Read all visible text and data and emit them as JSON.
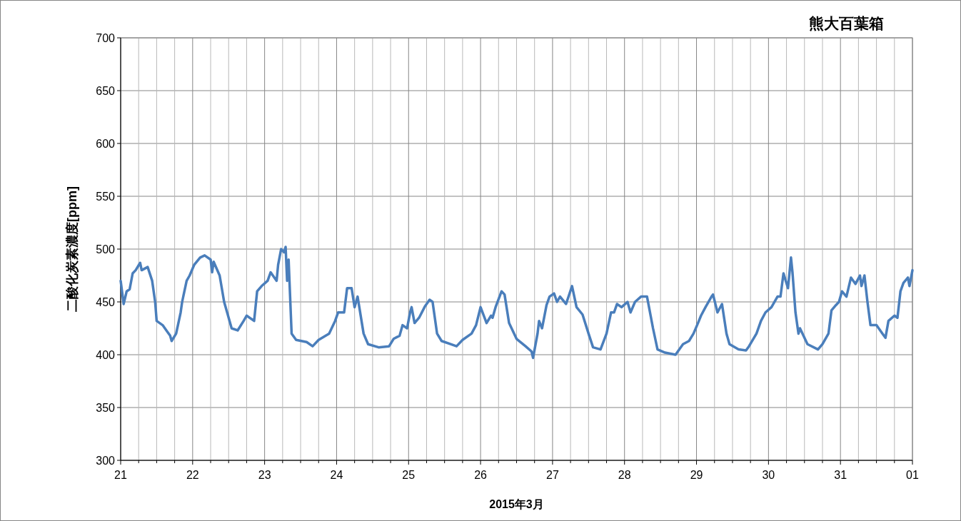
{
  "chart_data": {
    "type": "line",
    "title": "熊大百葉箱",
    "xlabel": "2015年3月",
    "ylabel": "二酸化炭素濃度[ppm]",
    "xlim": [
      "2015-03-21T00:00",
      "2015-04-01T00:00"
    ],
    "ylim": [
      300,
      700
    ],
    "yticks": [
      300,
      350,
      400,
      450,
      500,
      550,
      600,
      650,
      700
    ],
    "xticks": [
      {
        "value": "2015-03-21T00:00",
        "label": "21"
      },
      {
        "value": "2015-03-21T06:00",
        "label": null
      },
      {
        "value": "2015-03-21T12:00",
        "label": null
      },
      {
        "value": "2015-03-21T18:00",
        "label": null
      },
      {
        "value": "2015-03-22T00:00",
        "label": "22"
      },
      {
        "value": "2015-03-22T06:00",
        "label": null
      },
      {
        "value": "2015-03-22T12:00",
        "label": null
      },
      {
        "value": "2015-03-22T18:00",
        "label": null
      },
      {
        "value": "2015-03-23T00:00",
        "label": "23"
      },
      {
        "value": "2015-03-23T06:00",
        "label": null
      },
      {
        "value": "2015-03-23T12:00",
        "label": null
      },
      {
        "value": "2015-03-23T18:00",
        "label": null
      },
      {
        "value": "2015-03-24T00:00",
        "label": "24"
      },
      {
        "value": "2015-03-24T06:00",
        "label": null
      },
      {
        "value": "2015-03-24T12:00",
        "label": null
      },
      {
        "value": "2015-03-24T18:00",
        "label": null
      },
      {
        "value": "2015-03-25T00:00",
        "label": "25"
      },
      {
        "value": "2015-03-25T06:00",
        "label": null
      },
      {
        "value": "2015-03-25T12:00",
        "label": null
      },
      {
        "value": "2015-03-25T18:00",
        "label": null
      },
      {
        "value": "2015-03-26T00:00",
        "label": "26"
      },
      {
        "value": "2015-03-26T06:00",
        "label": null
      },
      {
        "value": "2015-03-26T12:00",
        "label": null
      },
      {
        "value": "2015-03-26T18:00",
        "label": null
      },
      {
        "value": "2015-03-27T00:00",
        "label": "27"
      },
      {
        "value": "2015-03-27T06:00",
        "label": null
      },
      {
        "value": "2015-03-27T12:00",
        "label": null
      },
      {
        "value": "2015-03-27T18:00",
        "label": null
      },
      {
        "value": "2015-03-28T00:00",
        "label": "28"
      },
      {
        "value": "2015-03-28T06:00",
        "label": null
      },
      {
        "value": "2015-03-28T12:00",
        "label": null
      },
      {
        "value": "2015-03-28T18:00",
        "label": null
      },
      {
        "value": "2015-03-29T00:00",
        "label": "29"
      },
      {
        "value": "2015-03-29T06:00",
        "label": null
      },
      {
        "value": "2015-03-29T12:00",
        "label": null
      },
      {
        "value": "2015-03-29T18:00",
        "label": null
      },
      {
        "value": "2015-03-30T00:00",
        "label": "30"
      },
      {
        "value": "2015-03-30T06:00",
        "label": null
      },
      {
        "value": "2015-03-30T12:00",
        "label": null
      },
      {
        "value": "2015-03-30T18:00",
        "label": null
      },
      {
        "value": "2015-03-31T00:00",
        "label": "31"
      },
      {
        "value": "2015-03-31T06:00",
        "label": null
      },
      {
        "value": "2015-03-31T12:00",
        "label": null
      },
      {
        "value": "2015-03-31T18:00",
        "label": null
      },
      {
        "value": "2015-04-01T00:00",
        "label": "01"
      }
    ],
    "grid": true,
    "series": [
      {
        "color": "#4a7ebb",
        "x": [
          "2015-03-21T00:00",
          "2015-03-21T01:00",
          "2015-03-21T02:00",
          "2015-03-21T03:00",
          "2015-03-21T04:00",
          "2015-03-21T05:00",
          "2015-03-21T06:30",
          "2015-03-21T07:00",
          "2015-03-21T09:00",
          "2015-03-21T10:30",
          "2015-03-21T11:30",
          "2015-03-21T12:00",
          "2015-03-21T14:00",
          "2015-03-21T15:30",
          "2015-03-21T16:30",
          "2015-03-21T17:00",
          "2015-03-21T18:30",
          "2015-03-21T20:00",
          "2015-03-21T20:30",
          "2015-03-21T22:00",
          "2015-03-21T23:00",
          "2015-03-22T00:30",
          "2015-03-22T02:30",
          "2015-03-22T04:00",
          "2015-03-22T06:00",
          "2015-03-22T06:30",
          "2015-03-22T07:00",
          "2015-03-22T09:00",
          "2015-03-22T10:30",
          "2015-03-22T11:30",
          "2015-03-22T13:00",
          "2015-03-22T15:00",
          "2015-03-22T17:00",
          "2015-03-22T18:00",
          "2015-03-22T20:30",
          "2015-03-22T21:30",
          "2015-03-22T23:00",
          "2015-03-23T01:00",
          "2015-03-23T02:00",
          "2015-03-23T04:00",
          "2015-03-23T04:30",
          "2015-03-23T05:30",
          "2015-03-23T06:30",
          "2015-03-23T07:00",
          "2015-03-23T07:30",
          "2015-03-23T08:00",
          "2015-03-23T09:00",
          "2015-03-23T10:30",
          "2015-03-23T14:00",
          "2015-03-23T16:00",
          "2015-03-23T18:00",
          "2015-03-23T21:30",
          "2015-03-23T23:30",
          "2015-03-24T00:30",
          "2015-03-24T02:30",
          "2015-03-24T03:30",
          "2015-03-24T05:00",
          "2015-03-24T06:00",
          "2015-03-24T07:00",
          "2015-03-24T09:00",
          "2015-03-24T10:30",
          "2015-03-24T14:00",
          "2015-03-24T17:30",
          "2015-03-24T19:00",
          "2015-03-24T21:00",
          "2015-03-24T22:00",
          "2015-03-24T23:30",
          "2015-03-25T00:30",
          "2015-03-25T01:00",
          "2015-03-25T02:00",
          "2015-03-25T03:30",
          "2015-03-25T05:30",
          "2015-03-25T07:00",
          "2015-03-25T08:00",
          "2015-03-25T09:30",
          "2015-03-25T11:00",
          "2015-03-25T14:00",
          "2015-03-25T16:00",
          "2015-03-25T18:00",
          "2015-03-25T21:00",
          "2015-03-25T22:30",
          "2015-03-26T00:00",
          "2015-03-26T02:00",
          "2015-03-26T03:30",
          "2015-03-26T04:00",
          "2015-03-26T05:00",
          "2015-03-26T07:00",
          "2015-03-26T08:00",
          "2015-03-26T09:30",
          "2015-03-26T12:00",
          "2015-03-26T15:00",
          "2015-03-26T17:00",
          "2015-03-26T17:30",
          "2015-03-26T19:00",
          "2015-03-26T19:30",
          "2015-03-26T20:30",
          "2015-03-26T22:00",
          "2015-03-26T23:00",
          "2015-03-27T00:30",
          "2015-03-27T01:30",
          "2015-03-27T02:30",
          "2015-03-27T04:30",
          "2015-03-27T06:30",
          "2015-03-27T08:00",
          "2015-03-27T10:00",
          "2015-03-27T12:00",
          "2015-03-27T13:30",
          "2015-03-27T16:00",
          "2015-03-27T18:00",
          "2015-03-27T19:30",
          "2015-03-27T20:30",
          "2015-03-27T21:30",
          "2015-03-27T23:00",
          "2015-03-28T01:00",
          "2015-03-28T02:00",
          "2015-03-28T03:30",
          "2015-03-28T05:30",
          "2015-03-28T07:30",
          "2015-03-28T09:30",
          "2015-03-28T11:00",
          "2015-03-28T13:30",
          "2015-03-28T17:00",
          "2015-03-28T19:30",
          "2015-03-28T21:30",
          "2015-03-28T23:00",
          "2015-03-29T00:30",
          "2015-03-29T01:30",
          "2015-03-29T03:00",
          "2015-03-29T05:00",
          "2015-03-29T05:30",
          "2015-03-29T07:00",
          "2015-03-29T08:30",
          "2015-03-29T10:00",
          "2015-03-29T11:00",
          "2015-03-29T14:00",
          "2015-03-29T16:30",
          "2015-03-29T17:30",
          "2015-03-29T20:00",
          "2015-03-29T21:30",
          "2015-03-29T23:00",
          "2015-03-30T01:00",
          "2015-03-30T03:00",
          "2015-03-30T04:00",
          "2015-03-30T05:00",
          "2015-03-30T06:30",
          "2015-03-30T07:30",
          "2015-03-30T08:00",
          "2015-03-30T09:00",
          "2015-03-30T10:00",
          "2015-03-30T10:30",
          "2015-03-30T13:00",
          "2015-03-30T16:30",
          "2015-03-30T18:00",
          "2015-03-30T20:00",
          "2015-03-30T21:00",
          "2015-03-30T22:30",
          "2015-03-30T23:30",
          "2015-03-31T00:30",
          "2015-03-31T02:00",
          "2015-03-31T03:30",
          "2015-03-31T05:00",
          "2015-03-31T06:30",
          "2015-03-31T07:00",
          "2015-03-31T08:00",
          "2015-03-31T09:00",
          "2015-03-31T10:00",
          "2015-03-31T12:00",
          "2015-03-31T14:00",
          "2015-03-31T15:00",
          "2015-03-31T16:00",
          "2015-03-31T18:00",
          "2015-03-31T19:00",
          "2015-03-31T20:00",
          "2015-03-31T21:00",
          "2015-03-31T22:30",
          "2015-03-31T23:00",
          "2015-04-01T00:00"
        ],
        "values": [
          470,
          448,
          460,
          462,
          477,
          480,
          487,
          480,
          483,
          470,
          450,
          432,
          428,
          422,
          418,
          413,
          420,
          440,
          450,
          470,
          475,
          485,
          492,
          494,
          490,
          478,
          488,
          475,
          450,
          440,
          425,
          423,
          432,
          437,
          432,
          460,
          465,
          470,
          478,
          470,
          485,
          500,
          497,
          502,
          470,
          490,
          420,
          414,
          412,
          408,
          414,
          420,
          432,
          440,
          440,
          463,
          463,
          445,
          455,
          420,
          410,
          407,
          408,
          415,
          418,
          428,
          425,
          440,
          445,
          430,
          435,
          446,
          452,
          450,
          420,
          413,
          410,
          408,
          414,
          420,
          428,
          445,
          430,
          437,
          435,
          445,
          460,
          457,
          430,
          415,
          408,
          403,
          397,
          420,
          432,
          425,
          447,
          455,
          458,
          450,
          455,
          448,
          465,
          445,
          438,
          420,
          407,
          405,
          420,
          440,
          440,
          448,
          445,
          450,
          440,
          450,
          455,
          455,
          425,
          405,
          402,
          400,
          410,
          413,
          420,
          430,
          437,
          445,
          455,
          457,
          440,
          448,
          420,
          410,
          405,
          404,
          408,
          420,
          432,
          440,
          445,
          455,
          455,
          477,
          463,
          492,
          478,
          440,
          420,
          425,
          410,
          405,
          410,
          420,
          442,
          447,
          450,
          460,
          455,
          473,
          467,
          475,
          465,
          475,
          450,
          428,
          428,
          420,
          416,
          432,
          437,
          435,
          460,
          468,
          473,
          465,
          480
        ]
      }
    ]
  }
}
